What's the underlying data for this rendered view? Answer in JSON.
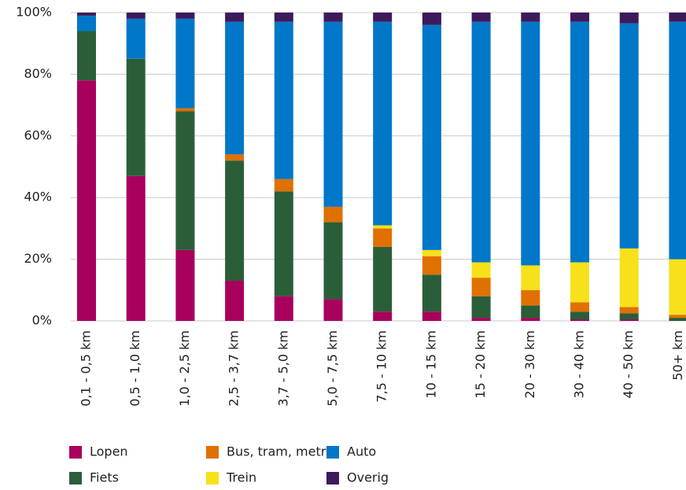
{
  "chart_data": {
    "type": "stacked-bar",
    "categories": [
      "0,1 - 0,5 km",
      "0,5 - 1,0 km",
      "1,0 - 2,5 km",
      "2,5 - 3,7 km",
      "3,7 - 5,0 km",
      "5,0 - 7,5 km",
      "7,5 - 10 km",
      "10 - 15 km",
      "15 - 20 km",
      "20 - 30 km",
      "30 - 40 km",
      "40 - 50 km",
      "50+ km"
    ],
    "series": [
      {
        "name": "Lopen",
        "color": "#a8005c",
        "values": [
          78,
          47,
          23,
          13,
          8,
          7,
          3,
          3,
          1,
          1,
          0.5,
          0.5,
          0
        ]
      },
      {
        "name": "Fiets",
        "color": "#2a5e38",
        "values": [
          16,
          38,
          45,
          39,
          34,
          25,
          21,
          12,
          7,
          4,
          2.5,
          2,
          1
        ]
      },
      {
        "name": "Bus, tram, metro",
        "color": "#e07000",
        "values": [
          0,
          0,
          1,
          2,
          4,
          5,
          6,
          6,
          6,
          5,
          3,
          2,
          1
        ]
      },
      {
        "name": "Trein",
        "color": "#f7e11b",
        "values": [
          0,
          0,
          0,
          0,
          0,
          0,
          1,
          2,
          5,
          8,
          13,
          19,
          18
        ]
      },
      {
        "name": "Auto",
        "color": "#0077c8",
        "values": [
          5,
          13,
          29,
          43,
          51,
          60,
          66,
          73,
          78,
          79,
          78,
          73,
          77
        ]
      },
      {
        "name": "Overig",
        "color": "#3d1a5c",
        "values": [
          1,
          2,
          2,
          3,
          3,
          3,
          3,
          4,
          3,
          3,
          3,
          3.5,
          3
        ]
      }
    ],
    "ylim": [
      0,
      100
    ],
    "yticks": [
      {
        "value": 0,
        "label": "0%"
      },
      {
        "value": 20,
        "label": "20%"
      },
      {
        "value": 40,
        "label": "40%"
      },
      {
        "value": 60,
        "label": "60%"
      },
      {
        "value": 80,
        "label": "80%"
      },
      {
        "value": 100,
        "label": "100%"
      }
    ],
    "grid": true,
    "legend": "bottom-left"
  }
}
